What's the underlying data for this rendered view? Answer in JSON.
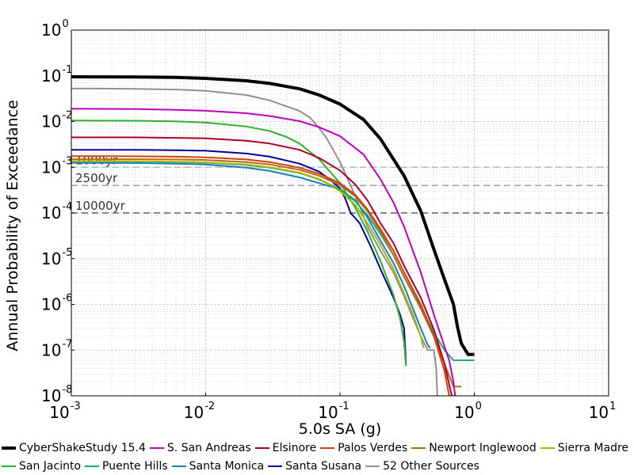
{
  "chart_data": {
    "type": "line",
    "title": "",
    "xlabel": "5.0s SA (g)",
    "ylabel": "Annual Probability of Exceedance",
    "xscale": "log",
    "yscale": "log",
    "xlim": [
      0.001,
      10
    ],
    "ylim": [
      1e-08,
      1
    ],
    "grid": true,
    "legend_position": "bottom",
    "x_ticks": [
      {
        "base": "10",
        "exp": "-3"
      },
      {
        "base": "10",
        "exp": "-2"
      },
      {
        "base": "10",
        "exp": "-1"
      },
      {
        "base": "10",
        "exp": "0"
      },
      {
        "base": "10",
        "exp": "1"
      }
    ],
    "y_ticks": [
      {
        "base": "10",
        "exp": "-8"
      },
      {
        "base": "10",
        "exp": "-7"
      },
      {
        "base": "10",
        "exp": "-6"
      },
      {
        "base": "10",
        "exp": "-5"
      },
      {
        "base": "10",
        "exp": "-4"
      },
      {
        "base": "10",
        "exp": "-3"
      },
      {
        "base": "10",
        "exp": "-2"
      },
      {
        "base": "10",
        "exp": "-1"
      },
      {
        "base": "10",
        "exp": "0"
      }
    ],
    "reference_lines": [
      {
        "label": "1000yr",
        "y": 0.001
      },
      {
        "label": "2500yr",
        "y": 0.0004
      },
      {
        "label": "10000yr",
        "y": 0.0001
      }
    ],
    "series": [
      {
        "name": "CyberShakeStudy 15.4",
        "color": "#000000",
        "width": 4,
        "points": [
          [
            0.001,
            0.095
          ],
          [
            0.003,
            0.094
          ],
          [
            0.006,
            0.092
          ],
          [
            0.01,
            0.088
          ],
          [
            0.02,
            0.078
          ],
          [
            0.03,
            0.068
          ],
          [
            0.05,
            0.052
          ],
          [
            0.07,
            0.038
          ],
          [
            0.1,
            0.024
          ],
          [
            0.15,
            0.011
          ],
          [
            0.2,
            0.0042
          ],
          [
            0.3,
            0.00065
          ],
          [
            0.4,
            0.00011
          ],
          [
            0.5,
            1.6e-05
          ],
          [
            0.6,
            3.5e-06
          ],
          [
            0.7,
            1e-06
          ],
          [
            0.75,
            3.2e-07
          ],
          [
            0.8,
            1.4e-07
          ],
          [
            0.9,
            8e-08
          ],
          [
            1.0,
            8e-08
          ]
        ]
      },
      {
        "name": "S. San Andreas",
        "color": "#c000c0",
        "width": 2,
        "points": [
          [
            0.001,
            0.019
          ],
          [
            0.003,
            0.0188
          ],
          [
            0.006,
            0.018
          ],
          [
            0.01,
            0.0172
          ],
          [
            0.02,
            0.0152
          ],
          [
            0.03,
            0.0132
          ],
          [
            0.05,
            0.0102
          ],
          [
            0.07,
            0.0075
          ],
          [
            0.1,
            0.0048
          ],
          [
            0.15,
            0.0019
          ],
          [
            0.2,
            0.00055
          ],
          [
            0.25,
            0.00017
          ],
          [
            0.3,
            5e-05
          ],
          [
            0.4,
            5e-06
          ],
          [
            0.5,
            6e-07
          ],
          [
            0.6,
            1.2e-07
          ],
          [
            0.65,
            6e-08
          ],
          [
            0.7,
            2e-08
          ],
          [
            0.72,
            1e-08
          ]
        ]
      },
      {
        "name": "Elsinore",
        "color": "#b00020",
        "width": 2,
        "points": [
          [
            0.001,
            0.0045
          ],
          [
            0.003,
            0.0045
          ],
          [
            0.006,
            0.0044
          ],
          [
            0.01,
            0.0043
          ],
          [
            0.02,
            0.0038
          ],
          [
            0.03,
            0.0033
          ],
          [
            0.05,
            0.0024
          ],
          [
            0.07,
            0.0016
          ],
          [
            0.1,
            0.00085
          ],
          [
            0.13,
            0.00042
          ],
          [
            0.16,
            0.00019
          ],
          [
            0.2,
            6e-05
          ],
          [
            0.25,
            2.2e-05
          ],
          [
            0.3,
            7e-06
          ],
          [
            0.4,
            1.4e-06
          ],
          [
            0.5,
            2.8e-07
          ],
          [
            0.6,
            5e-08
          ],
          [
            0.68,
            1e-08
          ]
        ]
      },
      {
        "name": "Palos Verdes",
        "color": "#d04010",
        "width": 2,
        "points": [
          [
            0.001,
            0.00175
          ],
          [
            0.003,
            0.00174
          ],
          [
            0.006,
            0.0017
          ],
          [
            0.01,
            0.00165
          ],
          [
            0.02,
            0.00148
          ],
          [
            0.03,
            0.0013
          ],
          [
            0.05,
            0.00098
          ],
          [
            0.07,
            0.00072
          ],
          [
            0.1,
            0.00045
          ],
          [
            0.13,
            0.00025
          ],
          [
            0.16,
            0.00012
          ],
          [
            0.2,
            4.5e-05
          ],
          [
            0.25,
            1.5e-05
          ],
          [
            0.3,
            5e-06
          ],
          [
            0.4,
            1e-06
          ],
          [
            0.5,
            2e-07
          ],
          [
            0.6,
            3.5e-08
          ],
          [
            0.65,
            1e-08
          ]
        ]
      },
      {
        "name": "Newport Inglewood",
        "color": "#b07010",
        "width": 2,
        "points": [
          [
            0.001,
            0.0015
          ],
          [
            0.003,
            0.0015
          ],
          [
            0.006,
            0.00148
          ],
          [
            0.01,
            0.00144
          ],
          [
            0.02,
            0.0013
          ],
          [
            0.03,
            0.00115
          ],
          [
            0.05,
            0.00088
          ],
          [
            0.07,
            0.00065
          ],
          [
            0.1,
            0.00041
          ],
          [
            0.13,
            0.00023
          ],
          [
            0.16,
            0.00011
          ],
          [
            0.2,
            4e-05
          ],
          [
            0.25,
            1.2e-05
          ],
          [
            0.3,
            4e-06
          ],
          [
            0.4,
            8e-07
          ],
          [
            0.5,
            2e-07
          ],
          [
            0.6,
            5e-08
          ],
          [
            0.7,
            1.6e-08
          ],
          [
            0.8,
            1.6e-08
          ]
        ]
      },
      {
        "name": "Sierra Madre",
        "color": "#b0b000",
        "width": 2,
        "points": [
          [
            0.001,
            0.00135
          ],
          [
            0.003,
            0.00135
          ],
          [
            0.006,
            0.00132
          ],
          [
            0.01,
            0.00128
          ],
          [
            0.02,
            0.00115
          ],
          [
            0.03,
            0.001
          ],
          [
            0.05,
            0.00076
          ],
          [
            0.07,
            0.00055
          ],
          [
            0.08,
            0.00045
          ],
          [
            0.1,
            0.0003
          ],
          [
            0.13,
            0.00015
          ],
          [
            0.16,
            6e-05
          ],
          [
            0.2,
            2e-05
          ],
          [
            0.25,
            6e-06
          ],
          [
            0.3,
            1.7e-06
          ],
          [
            0.35,
            6e-07
          ],
          [
            0.4,
            2e-07
          ],
          [
            0.42,
            1.1e-07
          ]
        ]
      },
      {
        "name": "San Jacinto",
        "color": "#30b030",
        "width": 2,
        "points": [
          [
            0.001,
            0.0105
          ],
          [
            0.003,
            0.0104
          ],
          [
            0.006,
            0.0101
          ],
          [
            0.01,
            0.0095
          ],
          [
            0.02,
            0.0078
          ],
          [
            0.03,
            0.0062
          ],
          [
            0.04,
            0.0046
          ],
          [
            0.05,
            0.0033
          ],
          [
            0.07,
            0.0015
          ],
          [
            0.1,
            0.00045
          ],
          [
            0.13,
            0.00013
          ],
          [
            0.16,
            4e-05
          ],
          [
            0.2,
            9e-06
          ],
          [
            0.25,
            1.6e-06
          ],
          [
            0.28,
            5e-07
          ],
          [
            0.3,
            1.5e-07
          ],
          [
            0.31,
            4.5e-08
          ]
        ]
      },
      {
        "name": "Puente Hills",
        "color": "#10b070",
        "width": 2,
        "points": [
          [
            0.001,
            0.00135
          ],
          [
            0.003,
            0.00134
          ],
          [
            0.006,
            0.0013
          ],
          [
            0.01,
            0.00126
          ],
          [
            0.02,
            0.00112
          ],
          [
            0.03,
            0.00098
          ],
          [
            0.05,
            0.00075
          ],
          [
            0.07,
            0.00054
          ],
          [
            0.1,
            0.00033
          ],
          [
            0.13,
            0.00018
          ],
          [
            0.16,
            9e-05
          ],
          [
            0.2,
            3.5e-05
          ],
          [
            0.25,
            1.2e-05
          ],
          [
            0.3,
            4e-06
          ],
          [
            0.4,
            9e-07
          ],
          [
            0.5,
            2.4e-07
          ],
          [
            0.6,
            1e-07
          ],
          [
            0.7,
            6e-08
          ],
          [
            0.8,
            6e-08
          ],
          [
            1.0,
            6e-08
          ]
        ]
      },
      {
        "name": "Santa Monica",
        "color": "#1080c0",
        "width": 2,
        "points": [
          [
            0.001,
            0.00125
          ],
          [
            0.003,
            0.00124
          ],
          [
            0.006,
            0.0012
          ],
          [
            0.01,
            0.00115
          ],
          [
            0.02,
            0.00098
          ],
          [
            0.03,
            0.00083
          ],
          [
            0.05,
            0.0006
          ],
          [
            0.07,
            0.00045
          ],
          [
            0.1,
            0.00033
          ],
          [
            0.13,
            0.00019
          ],
          [
            0.16,
            8e-05
          ],
          [
            0.2,
            2.5e-05
          ],
          [
            0.25,
            8e-06
          ],
          [
            0.3,
            2.5e-06
          ],
          [
            0.35,
            8e-07
          ],
          [
            0.4,
            3e-07
          ],
          [
            0.45,
            1.3e-07
          ],
          [
            0.47,
            1.1e-07
          ]
        ]
      },
      {
        "name": "Santa Susana",
        "color": "#0000a0",
        "width": 2,
        "points": [
          [
            0.001,
            0.0024
          ],
          [
            0.003,
            0.0024
          ],
          [
            0.006,
            0.00235
          ],
          [
            0.01,
            0.0023
          ],
          [
            0.02,
            0.002
          ],
          [
            0.03,
            0.0017
          ],
          [
            0.05,
            0.0012
          ],
          [
            0.07,
            0.0008
          ],
          [
            0.08,
            0.0006
          ],
          [
            0.1,
            0.00035
          ],
          [
            0.11,
            0.0002
          ],
          [
            0.12,
            0.0001
          ],
          [
            0.14,
            6e-05
          ],
          [
            0.17,
            1.8e-05
          ],
          [
            0.2,
            6e-06
          ],
          [
            0.25,
            1.4e-06
          ],
          [
            0.28,
            6e-07
          ],
          [
            0.3,
            3e-07
          ],
          [
            0.31,
            5e-08
          ]
        ]
      },
      {
        "name": "52 Other Sources",
        "color": "#909090",
        "width": 2,
        "points": [
          [
            0.001,
            0.053
          ],
          [
            0.003,
            0.052
          ],
          [
            0.006,
            0.05
          ],
          [
            0.01,
            0.047
          ],
          [
            0.02,
            0.038
          ],
          [
            0.03,
            0.029
          ],
          [
            0.05,
            0.017
          ],
          [
            0.06,
            0.012
          ],
          [
            0.07,
            0.0072
          ],
          [
            0.08,
            0.0042
          ],
          [
            0.1,
            0.0013
          ],
          [
            0.12,
            0.0004
          ],
          [
            0.14,
            0.00014
          ],
          [
            0.16,
            5e-05
          ],
          [
            0.2,
            1.5e-05
          ],
          [
            0.25,
            5e-06
          ],
          [
            0.3,
            1.5e-06
          ],
          [
            0.35,
            5e-07
          ],
          [
            0.4,
            2e-07
          ],
          [
            0.45,
            1e-07
          ],
          [
            0.5,
            1e-07
          ],
          [
            0.52,
            4e-08
          ],
          [
            0.53,
            1e-08
          ]
        ]
      }
    ]
  }
}
